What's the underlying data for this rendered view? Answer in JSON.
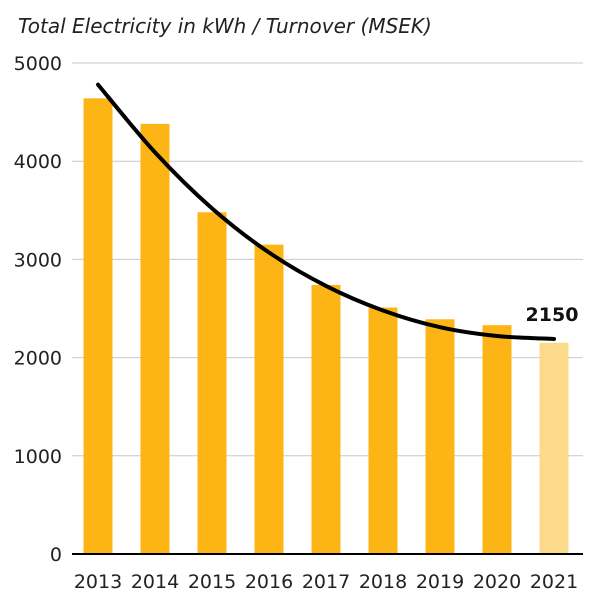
{
  "chart_data": {
    "type": "bar",
    "title": "Total Electricity in kWh / Turnover (MSEK)",
    "xlabel": "",
    "ylabel": "",
    "categories": [
      "2013",
      "2014",
      "2015",
      "2016",
      "2017",
      "2018",
      "2019",
      "2020",
      "2021"
    ],
    "values": [
      4640,
      4380,
      3480,
      3150,
      2740,
      2510,
      2390,
      2330,
      2150
    ],
    "ylim": [
      0,
      5000
    ],
    "yticks": [
      "0",
      "1000",
      "2000",
      "3000",
      "4000",
      "5000"
    ],
    "grid": true,
    "bar_color": "#FDB515",
    "highlight_color": "#FDD98A",
    "highlight_category": "2021",
    "trend_line": {
      "color": "#000000",
      "values": [
        4780,
        4090,
        3520,
        3070,
        2730,
        2480,
        2310,
        2220,
        2190
      ]
    },
    "annotations": [
      {
        "category": "2021",
        "text": "2150"
      }
    ]
  }
}
